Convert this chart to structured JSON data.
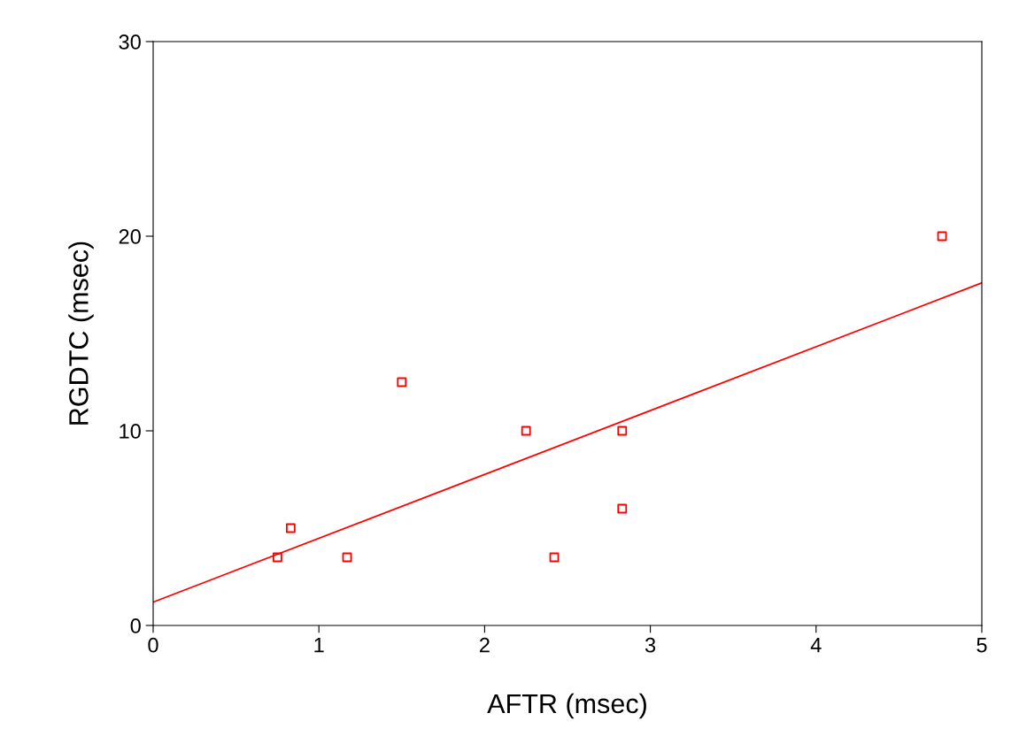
{
  "chart_data": {
    "type": "scatter",
    "xlabel": "AFTR (msec)",
    "ylabel": "RGDTC (msec)",
    "xlim": [
      0,
      5
    ],
    "xticks": [
      0,
      1,
      2,
      3,
      4,
      5
    ],
    "ylim": [
      0,
      30
    ],
    "yticks": [
      0,
      10,
      20,
      30
    ],
    "grid": false,
    "marker": "square",
    "series": [
      {
        "color": "#ff0000",
        "x": [
          0.75,
          0.83,
          1.17,
          1.5,
          2.25,
          2.42,
          2.83,
          2.83,
          4.76
        ],
        "values": [
          3.5,
          5.0,
          3.5,
          12.5,
          10.0,
          3.5,
          10.0,
          6.0,
          20.0
        ]
      },
      {
        "type": "line",
        "color": "#ff0000",
        "x": [
          0,
          5
        ],
        "values": [
          1.2,
          17.6
        ],
        "marker": "none",
        "line_style": "solid"
      }
    ]
  }
}
